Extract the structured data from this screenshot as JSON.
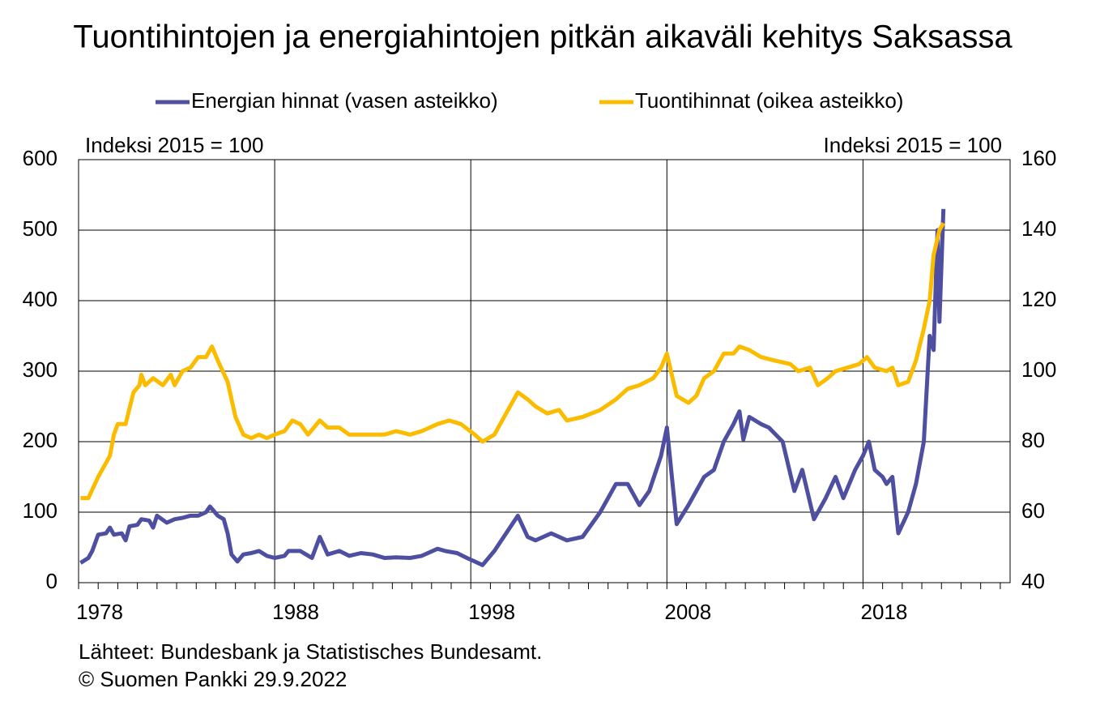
{
  "chart_data": {
    "type": "line",
    "title": "Tuontihintojen ja energiahintojen pitkän aikaväli kehitys Saksassa",
    "y_label": "Indeksi 2015 = 100",
    "y2_label": "Indeksi 2015 = 100",
    "source": "Lähteet: Bundesbank ja Statistisches Bundesamt.",
    "copyright": "© Suomen Pankki 29.9.2022",
    "xlim": [
      1978,
      2025.5
    ],
    "xticks": [
      1978,
      1988,
      1998,
      2008,
      2018
    ],
    "ylim": [
      0,
      600
    ],
    "yticks": [
      0,
      100,
      200,
      300,
      400,
      500,
      600
    ],
    "y2lim": [
      40,
      160
    ],
    "y2ticks": [
      40,
      60,
      80,
      100,
      120,
      140,
      160
    ],
    "grid": true,
    "legend": "top",
    "series": [
      {
        "name": "Energian hinnat (vasen asteikko)",
        "color": "#4e4fa0",
        "axis": "y",
        "x": [
          1978.1,
          1978.5,
          1978.7,
          1979.0,
          1979.4,
          1979.6,
          1979.8,
          1980.2,
          1980.4,
          1980.6,
          1981.0,
          1981.2,
          1981.6,
          1981.8,
          1982.0,
          1982.5,
          1982.9,
          1983.3,
          1983.7,
          1984.1,
          1984.5,
          1984.7,
          1985.1,
          1985.4,
          1985.6,
          1985.8,
          1986.1,
          1986.4,
          1986.8,
          1987.2,
          1987.6,
          1988.0,
          1988.5,
          1988.7,
          1989.3,
          1989.9,
          1990.3,
          1990.7,
          1991.3,
          1991.8,
          1992.4,
          1993.0,
          1993.6,
          1994.2,
          1994.9,
          1995.5,
          1996.3,
          1996.7,
          1997.3,
          1997.8,
          1998.2,
          1998.6,
          1999.2,
          1999.8,
          2000.4,
          2000.9,
          2001.3,
          2002.1,
          2002.9,
          2003.7,
          2004.6,
          2005.0,
          2005.4,
          2006.0,
          2006.6,
          2007.1,
          2007.7,
          2008.0,
          2008.5,
          2009.1,
          2009.5,
          2009.9,
          2010.4,
          2010.9,
          2011.4,
          2011.7,
          2011.9,
          2012.2,
          2012.8,
          2013.2,
          2013.9,
          2014.5,
          2014.9,
          2015.5,
          2016.1,
          2016.6,
          2017.0,
          2017.6,
          2018.0,
          2018.3,
          2018.6,
          2019.0,
          2019.2,
          2019.5,
          2019.8,
          2020.3,
          2020.7,
          2021.1,
          2021.4,
          2021.6,
          2021.8,
          2021.9,
          2022.1
        ],
        "values": [
          28,
          35,
          45,
          68,
          70,
          78,
          68,
          70,
          60,
          80,
          82,
          90,
          88,
          78,
          95,
          85,
          90,
          92,
          95,
          95,
          100,
          108,
          95,
          90,
          70,
          40,
          30,
          40,
          42,
          45,
          38,
          35,
          38,
          45,
          45,
          35,
          65,
          40,
          45,
          38,
          42,
          40,
          35,
          36,
          35,
          38,
          48,
          45,
          42,
          35,
          30,
          25,
          45,
          70,
          95,
          65,
          60,
          70,
          60,
          65,
          100,
          120,
          140,
          140,
          110,
          130,
          180,
          220,
          83,
          110,
          130,
          150,
          160,
          200,
          225,
          243,
          203,
          235,
          225,
          220,
          200,
          130,
          160,
          90,
          120,
          150,
          120,
          160,
          180,
          200,
          160,
          150,
          140,
          150,
          70,
          100,
          140,
          200,
          350,
          330,
          500,
          370,
          530
        ]
      },
      {
        "name": "Tuontihinnat (oikea asteikko)",
        "color": "#fbbc00",
        "axis": "y2",
        "x": [
          1978.1,
          1978.5,
          1979.0,
          1979.4,
          1979.6,
          1979.8,
          1980.0,
          1980.4,
          1980.8,
          1981.1,
          1981.2,
          1981.4,
          1981.8,
          1982.3,
          1982.7,
          1982.9,
          1983.3,
          1983.7,
          1984.1,
          1984.5,
          1984.8,
          1985.1,
          1985.6,
          1986.0,
          1986.4,
          1986.8,
          1987.2,
          1987.6,
          1988.0,
          1988.5,
          1988.9,
          1989.3,
          1989.7,
          1990.3,
          1990.7,
          1991.3,
          1991.8,
          1992.4,
          1993.0,
          1993.6,
          1994.2,
          1994.9,
          1995.5,
          1996.3,
          1996.9,
          1997.5,
          1998.2,
          1998.6,
          1999.2,
          1999.8,
          2000.4,
          2000.9,
          2001.3,
          2001.9,
          2002.5,
          2002.9,
          2003.7,
          2004.6,
          2005.4,
          2006.0,
          2006.6,
          2007.3,
          2007.7,
          2008.0,
          2008.5,
          2009.1,
          2009.5,
          2009.9,
          2010.4,
          2010.9,
          2011.4,
          2011.7,
          2012.2,
          2012.8,
          2013.5,
          2014.3,
          2014.7,
          2015.3,
          2015.7,
          2016.2,
          2016.6,
          2017.2,
          2017.8,
          2018.2,
          2018.6,
          2019.2,
          2019.5,
          2019.8,
          2020.3,
          2020.7,
          2021.1,
          2021.4,
          2021.6,
          2021.9,
          2022.1
        ],
        "values": [
          64,
          64,
          70,
          74,
          76,
          82,
          85,
          85,
          94,
          96,
          99,
          96,
          98,
          96,
          99,
          96,
          100,
          101,
          104,
          104,
          107,
          103,
          97,
          87,
          82,
          81,
          82,
          81,
          82,
          83,
          86,
          85,
          82,
          86,
          84,
          84,
          82,
          82,
          82,
          82,
          83,
          82,
          83,
          85,
          86,
          85,
          82,
          80,
          82,
          88,
          94,
          92,
          90,
          88,
          89,
          86,
          87,
          89,
          92,
          95,
          96,
          98,
          101,
          105,
          93,
          91,
          93,
          98,
          100,
          105,
          105,
          107,
          106,
          104,
          103,
          102,
          100,
          101,
          96,
          98,
          100,
          101,
          102,
          104,
          101,
          100,
          101,
          96,
          97,
          103,
          112,
          120,
          133,
          140,
          142
        ]
      }
    ]
  }
}
